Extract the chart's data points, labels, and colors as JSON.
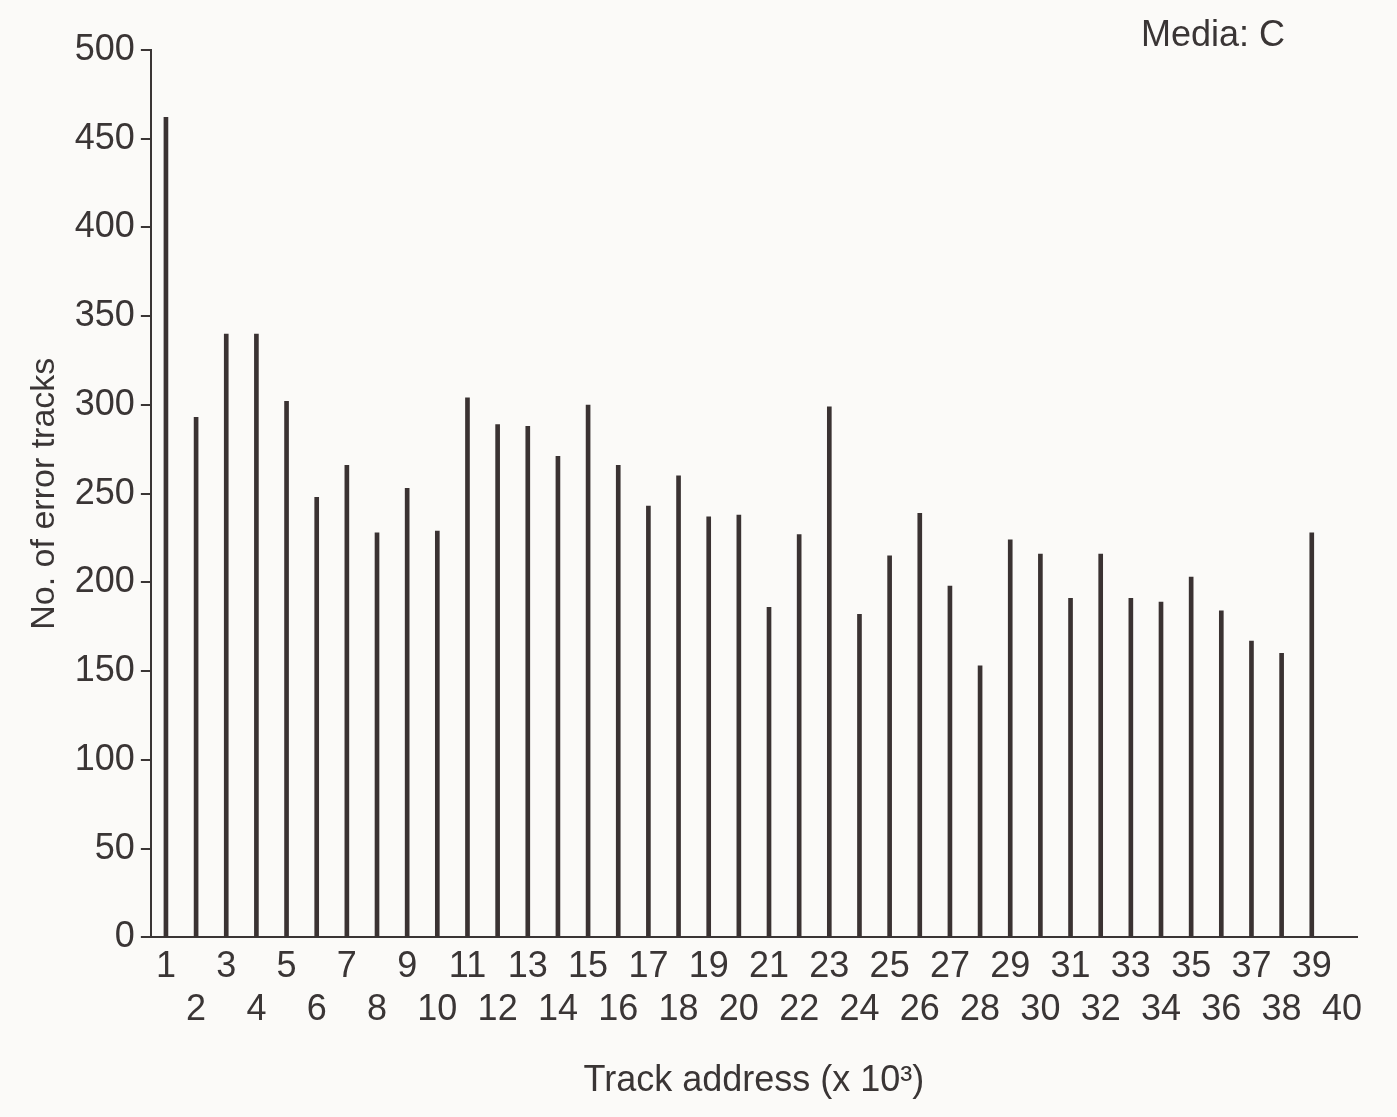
{
  "chart_data": {
    "type": "bar",
    "xlabel": "Track address (x 10³)",
    "ylabel": "No. of error tracks",
    "annotations": [
      "Media: C"
    ],
    "categories": [
      "1",
      "2",
      "3",
      "4",
      "5",
      "6",
      "7",
      "8",
      "9",
      "10",
      "11",
      "12",
      "13",
      "14",
      "15",
      "16",
      "17",
      "18",
      "19",
      "20",
      "21",
      "22",
      "23",
      "24",
      "25",
      "26",
      "27",
      "28",
      "29",
      "30",
      "31",
      "32",
      "33",
      "34",
      "35",
      "36",
      "37",
      "38",
      "39",
      "40"
    ],
    "values": [
      462,
      293,
      340,
      340,
      302,
      248,
      266,
      228,
      253,
      229,
      304,
      289,
      288,
      271,
      300,
      266,
      243,
      260,
      237,
      238,
      186,
      227,
      299,
      182,
      215,
      239,
      198,
      153,
      224,
      216,
      191,
      216,
      191,
      189,
      203,
      184,
      167,
      160,
      228,
      null
    ],
    "color": "#3a3232",
    "ylim": [
      0,
      500
    ],
    "yticks": [
      0,
      50,
      100,
      150,
      200,
      250,
      300,
      350,
      400,
      450,
      500
    ],
    "grid": false,
    "legend": false
  }
}
